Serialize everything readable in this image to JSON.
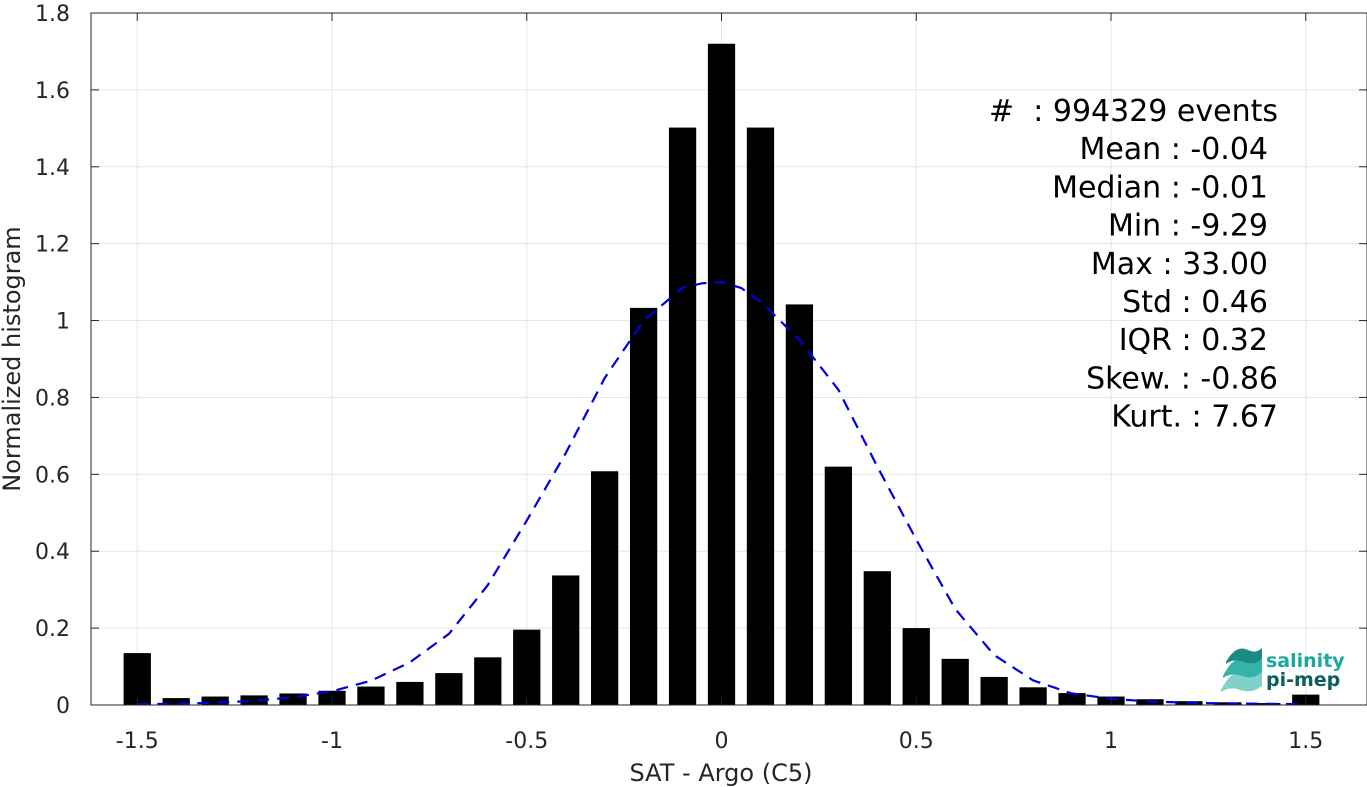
{
  "chart_data": {
    "type": "bar",
    "xlabel": "SAT - Argo (C5)",
    "ylabel": "Normalized histogram",
    "xlim": [
      -1.55,
      1.55
    ],
    "ylim": [
      0,
      1.8
    ],
    "xticks": [
      -1.5,
      -1,
      -0.5,
      0,
      0.5,
      1,
      1.5
    ],
    "xtick_labels": [
      "-1.5",
      "-1",
      "-0.5",
      "0",
      "0.5",
      "1",
      "1.5"
    ],
    "yticks": [
      0,
      0.2,
      0.4,
      0.6,
      0.8,
      1,
      1.2,
      1.4,
      1.6,
      1.8
    ],
    "ytick_labels": [
      "0",
      "0.2",
      "0.4",
      "0.6",
      "0.8",
      "1",
      "1.2",
      "1.4",
      "1.6",
      "1.8"
    ],
    "grid": true,
    "bar_color": "#000000",
    "bins": {
      "centers": [
        -1.5,
        -1.4,
        -1.3,
        -1.2,
        -1.1,
        -1.0,
        -0.9,
        -0.8,
        -0.7,
        -0.6,
        -0.5,
        -0.4,
        -0.3,
        -0.2,
        -0.1,
        0.0,
        0.1,
        0.2,
        0.3,
        0.4,
        0.5,
        0.6,
        0.7,
        0.8,
        0.9,
        1.0,
        1.1,
        1.2,
        1.3,
        1.4,
        1.5
      ],
      "values": [
        0.135,
        0.018,
        0.022,
        0.025,
        0.03,
        0.037,
        0.048,
        0.06,
        0.083,
        0.124,
        0.196,
        0.337,
        0.608,
        1.033,
        1.502,
        1.72,
        1.502,
        1.042,
        0.62,
        0.348,
        0.2,
        0.12,
        0.073,
        0.046,
        0.031,
        0.022,
        0.015,
        0.01,
        0.007,
        0.005,
        0.027
      ]
    },
    "fit": {
      "style": "dashed",
      "color": "#0000dd",
      "x": [
        -1.5,
        -1.4,
        -1.3,
        -1.2,
        -1.1,
        -1.0,
        -0.9,
        -0.8,
        -0.7,
        -0.6,
        -0.5,
        -0.4,
        -0.3,
        -0.2,
        -0.1,
        -0.05,
        0.0,
        0.05,
        0.1,
        0.2,
        0.3,
        0.4,
        0.5,
        0.6,
        0.7,
        0.8,
        0.9,
        1.0,
        1.1,
        1.2,
        1.3,
        1.4,
        1.5
      ],
      "y": [
        0.002,
        0.003,
        0.006,
        0.011,
        0.02,
        0.036,
        0.063,
        0.111,
        0.185,
        0.312,
        0.48,
        0.655,
        0.85,
        1.0,
        1.085,
        1.097,
        1.1,
        1.085,
        1.05,
        0.95,
        0.82,
        0.62,
        0.43,
        0.25,
        0.13,
        0.064,
        0.03,
        0.016,
        0.009,
        0.006,
        0.004,
        0.003,
        0.002
      ]
    },
    "stats": [
      "#  : 994329 events",
      "Mean : -0.04",
      "Median : -0.01",
      "Min : -9.29",
      "Max : 33.00",
      "Std : 0.46",
      "IQR : 0.32",
      "Skew. : -0.86",
      "Kurt. : 7.67"
    ]
  },
  "logo": {
    "line1": "salinity",
    "line2": "pi-mep",
    "color1": "#1aa9a0",
    "color2": "#0b5f5c"
  }
}
